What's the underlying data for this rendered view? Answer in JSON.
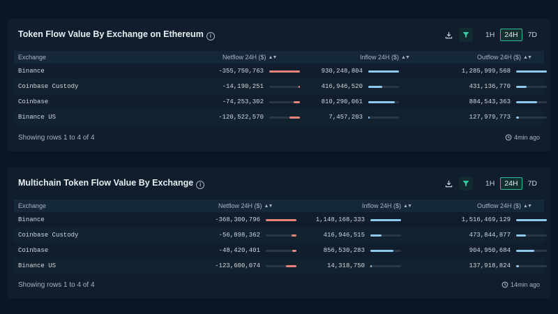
{
  "panels": [
    {
      "title": "Token Flow Value By Exchange on Ethereum",
      "timeframes": [
        "1H",
        "24H",
        "7D"
      ],
      "active_timeframe": "24H",
      "columns": {
        "exchange": "Exchange",
        "netflow": "Netflow 24H ($)",
        "inflow": "Inflow 24H ($)",
        "outflow": "Outflow 24H ($)"
      },
      "rows": [
        {
          "exchange": "Binance",
          "netflow": "-355,750,763",
          "inflow": "930,248,804",
          "outflow": "1,285,999,568",
          "net_frac": 1.0,
          "in_frac": 1.0,
          "out_frac": 1.0
        },
        {
          "exchange": "Coinbase Custody",
          "netflow": "-14,190,251",
          "inflow": "416,946,520",
          "outflow": "431,136,770",
          "net_frac": 0.05,
          "in_frac": 0.45,
          "out_frac": 0.34
        },
        {
          "exchange": "Coinbase",
          "netflow": "-74,253,302",
          "inflow": "810,290,061",
          "outflow": "884,543,363",
          "net_frac": 0.21,
          "in_frac": 0.87,
          "out_frac": 0.69
        },
        {
          "exchange": "Binance US",
          "netflow": "-120,522,570",
          "inflow": "7,457,203",
          "outflow": "127,979,773",
          "net_frac": 0.34,
          "in_frac": 0.01,
          "out_frac": 0.1
        }
      ],
      "footer": "Showing rows 1 to 4 of 4",
      "updated": "4min ago"
    },
    {
      "title": "Multichain Token Flow Value By Exchange",
      "timeframes": [
        "1H",
        "24H",
        "7D"
      ],
      "active_timeframe": "24H",
      "columns": {
        "exchange": "Exchange",
        "netflow": "Netflow 24H ($)",
        "inflow": "Inflow 24H ($)",
        "outflow": "Outflow 24H ($)"
      },
      "rows": [
        {
          "exchange": "Binance",
          "netflow": "-368,300,796",
          "inflow": "1,148,168,333",
          "outflow": "1,516,469,129",
          "net_frac": 1.0,
          "in_frac": 1.0,
          "out_frac": 1.0
        },
        {
          "exchange": "Coinbase Custody",
          "netflow": "-56,898,362",
          "inflow": "416,946,515",
          "outflow": "473,844,877",
          "net_frac": 0.15,
          "in_frac": 0.36,
          "out_frac": 0.31
        },
        {
          "exchange": "Coinbase",
          "netflow": "-48,420,401",
          "inflow": "856,530,283",
          "outflow": "904,950,684",
          "net_frac": 0.13,
          "in_frac": 0.75,
          "out_frac": 0.6
        },
        {
          "exchange": "Binance US",
          "netflow": "-123,600,074",
          "inflow": "14,318,750",
          "outflow": "137,918,824",
          "net_frac": 0.34,
          "in_frac": 0.01,
          "out_frac": 0.09
        }
      ],
      "footer": "Showing rows 1 to 4 of 4",
      "updated": "14min ago"
    }
  ],
  "icons": {
    "download": "download-icon",
    "filter": "filter-icon",
    "info": "info-icon",
    "refresh": "refresh-clock-icon"
  },
  "colors": {
    "netflow_bar": "#e8857a",
    "flow_bar": "#8ec8ef",
    "active_timeframe": "#2fb89a",
    "filter_icon": "#35c9a0"
  }
}
